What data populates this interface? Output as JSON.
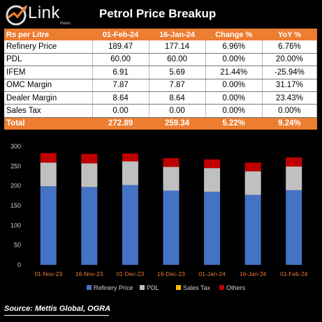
{
  "logo": {
    "word": "Link",
    "sub": "News"
  },
  "title": "Petrol Price Breakup",
  "table": {
    "headers": [
      "Rs per Litre",
      "01-Feb-24",
      "16-Jan-24",
      "Change %",
      "YoY %"
    ],
    "rows": [
      [
        "Refinery Price",
        "189.47",
        "177.14",
        "6.96%",
        "6.76%"
      ],
      [
        "PDL",
        "60.00",
        "60.00",
        "0.00%",
        "20.00%"
      ],
      [
        "IFEM",
        "6.91",
        "5.69",
        "21.44%",
        "-25.94%"
      ],
      [
        "OMC Margin",
        "7.87",
        "7.87",
        "0.00%",
        "31.17%"
      ],
      [
        "Dealer Margin",
        "8.64",
        "8.64",
        "0.00%",
        "23.43%"
      ],
      [
        "Sales Tax",
        "0.00",
        "0.00",
        "0.00%",
        "0.00%"
      ]
    ],
    "total": [
      "Total",
      "272.89",
      "259.34",
      "5.22%",
      "9.24%"
    ]
  },
  "chart_data": {
    "type": "bar",
    "stacked": true,
    "categories": [
      "01-Nov-23",
      "16-Nov-23",
      "01-Dec-23",
      "16-Dec-23",
      "01-Jan-24",
      "16-Jan-24",
      "01-Feb-24"
    ],
    "series": [
      {
        "name": "Refinery Price",
        "color": "#4472c4",
        "values": [
          199,
          197,
          202,
          188,
          185,
          177,
          189
        ]
      },
      {
        "name": "PDL",
        "color": "#c0c0c0",
        "values": [
          60,
          60,
          60,
          60,
          60,
          60,
          60
        ]
      },
      {
        "name": "Sales Tax",
        "color": "#ffc000",
        "values": [
          0,
          0,
          0,
          0,
          0,
          0,
          0
        ]
      },
      {
        "name": "Others",
        "color": "#c00000",
        "values": [
          24,
          24,
          20,
          22,
          22,
          22,
          23
        ]
      }
    ],
    "ylim": [
      0,
      300
    ],
    "yticks": [
      0,
      50,
      100,
      150,
      200,
      250,
      300
    ],
    "grid": false,
    "legend": "bottom"
  },
  "source": "Source: Mettis Global, OGRA"
}
